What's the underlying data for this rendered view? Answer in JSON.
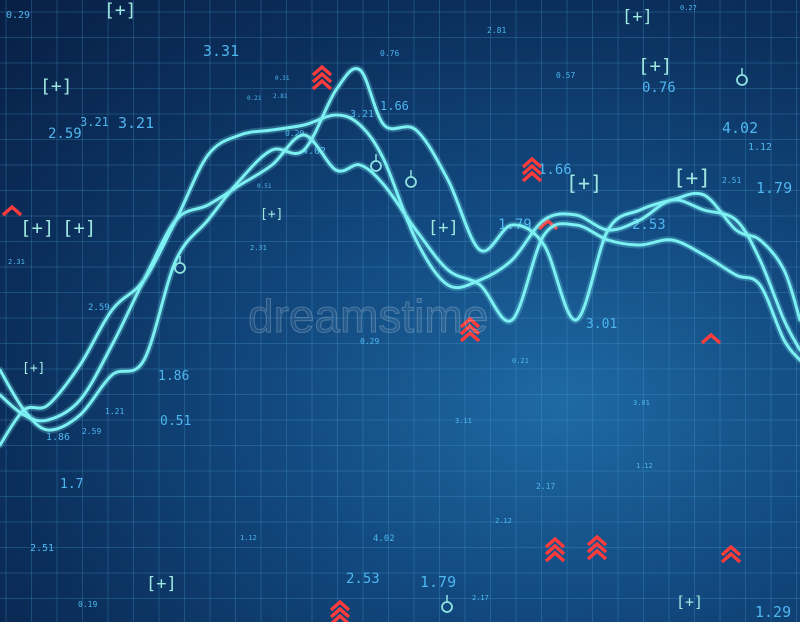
{
  "watermark": "dreamstime",
  "chart_data": {
    "type": "line",
    "title": "",
    "xlabel": "",
    "ylabel": "",
    "grid": true,
    "xlim": [
      0,
      100
    ],
    "ylim": [
      0,
      100
    ],
    "line_color": "#7cf0f2",
    "series": [
      {
        "values": [
          [
            0,
            15
          ],
          [
            3,
            22
          ],
          [
            6,
            23
          ],
          [
            10,
            31
          ],
          [
            14,
            42
          ],
          [
            18,
            48
          ],
          [
            22,
            60
          ],
          [
            26,
            73
          ],
          [
            30,
            77
          ],
          [
            34,
            78
          ],
          [
            38,
            79
          ],
          [
            42,
            81
          ],
          [
            45,
            79
          ],
          [
            48,
            72
          ],
          [
            52,
            56
          ],
          [
            56,
            47
          ],
          [
            60,
            48
          ],
          [
            64,
            52
          ],
          [
            68,
            60
          ],
          [
            72,
            61
          ],
          [
            76,
            58
          ],
          [
            80,
            60
          ],
          [
            84,
            64
          ],
          [
            88,
            62
          ],
          [
            92,
            60
          ],
          [
            95,
            52
          ],
          [
            98,
            40
          ],
          [
            100,
            34
          ]
        ]
      },
      {
        "values": [
          [
            0,
            25
          ],
          [
            3,
            21
          ],
          [
            6,
            20
          ],
          [
            10,
            24
          ],
          [
            14,
            35
          ],
          [
            18,
            48
          ],
          [
            22,
            60
          ],
          [
            26,
            63
          ],
          [
            30,
            67
          ],
          [
            34,
            71
          ],
          [
            38,
            77
          ],
          [
            42,
            70
          ],
          [
            45,
            71
          ],
          [
            48,
            67
          ],
          [
            52,
            58
          ],
          [
            56,
            50
          ],
          [
            60,
            47
          ],
          [
            64,
            40
          ],
          [
            68,
            57
          ],
          [
            72,
            59
          ],
          [
            76,
            56
          ],
          [
            80,
            55
          ],
          [
            84,
            56
          ],
          [
            88,
            53
          ],
          [
            92,
            49
          ],
          [
            95,
            47
          ],
          [
            98,
            36
          ],
          [
            100,
            32
          ]
        ]
      },
      {
        "values": [
          [
            0,
            30
          ],
          [
            3,
            22
          ],
          [
            6,
            18
          ],
          [
            10,
            21
          ],
          [
            14,
            29
          ],
          [
            18,
            32
          ],
          [
            22,
            52
          ],
          [
            26,
            60
          ],
          [
            30,
            68
          ],
          [
            34,
            74
          ],
          [
            38,
            74
          ],
          [
            42,
            86
          ],
          [
            45,
            90
          ],
          [
            48,
            79
          ],
          [
            52,
            78
          ],
          [
            56,
            68
          ],
          [
            60,
            54
          ],
          [
            64,
            59
          ],
          [
            68,
            55
          ],
          [
            72,
            40
          ],
          [
            76,
            58
          ],
          [
            80,
            62
          ],
          [
            84,
            64
          ],
          [
            88,
            65
          ],
          [
            92,
            58
          ],
          [
            95,
            56
          ],
          [
            98,
            50
          ],
          [
            100,
            40
          ]
        ]
      }
    ],
    "annotations": [
      "0.29",
      "3.21",
      "2.59",
      "3.21",
      "0.29",
      "2.59",
      "2.31",
      "0.21",
      "2.81",
      "4.02",
      "0.51",
      "3.31",
      "1.86",
      "0.76",
      "0.57",
      "0.76",
      "4.02",
      "1.12",
      "2.51",
      "1.79",
      "3.21",
      "1.66",
      "1.66",
      "1.79",
      "2.53",
      "0.31",
      "2.81",
      "2.31",
      "2.59",
      "0.29",
      "3.01",
      "0.21",
      "3.01",
      "1.86",
      "1.21",
      "0.51",
      "3.11",
      "1.12",
      "2.17",
      "2.12",
      "1.7",
      "1.12",
      "4.02",
      "2.51",
      "2.53",
      "1.79",
      "2.17",
      "0.19",
      "1.29",
      "0.27",
      "[+]",
      "[+]",
      "[+]",
      "[+]",
      "[+]",
      "[+]",
      "[+]",
      "[+]",
      "[+]",
      "[+]",
      "[+]",
      "[+]",
      "[+]"
    ]
  }
}
